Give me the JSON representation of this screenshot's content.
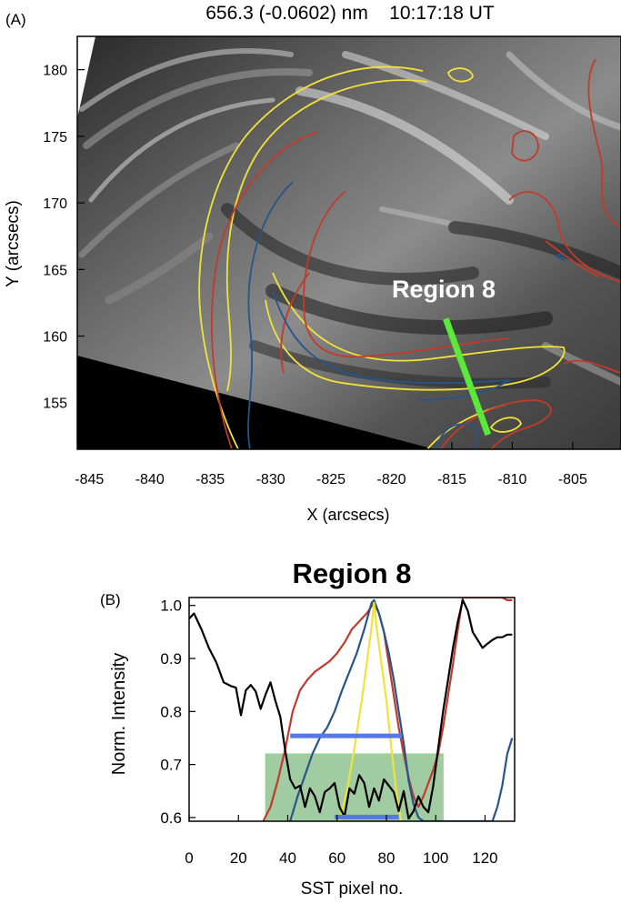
{
  "chart_data": [
    {
      "type": "image",
      "panel_label": "(A)",
      "title": "656.3 (-0.0602) nm    10:17:18 UT",
      "xlabel": "X (arcsecs)",
      "ylabel": "Y (arcsecs)",
      "xlim": [
        -846,
        -801
      ],
      "ylim": [
        151.5,
        182.5
      ],
      "xticks": [
        -845,
        -840,
        -835,
        -830,
        -825,
        -820,
        -815,
        -810,
        -805
      ],
      "yticks": [
        155,
        160,
        165,
        170,
        175,
        180
      ],
      "annotation": "Region 8",
      "region_line": [
        [
          -815.5,
          161.3
        ],
        [
          -812.0,
          152.6
        ]
      ],
      "colors": {
        "yellow": "#f1e23a",
        "red": "#c23a2b",
        "blue": "#27548a",
        "green": "#5ae83a"
      }
    },
    {
      "type": "line",
      "panel_label": "(B)",
      "title": "Region 8",
      "xlabel": "SST pixel no.",
      "ylabel": "Norm. Intensity",
      "xlim": [
        0,
        132
      ],
      "ylim": [
        0.593,
        1.015
      ],
      "xticks": [
        0,
        20,
        40,
        60,
        80,
        100,
        120
      ],
      "yticks": [
        0.6,
        0.7,
        0.8,
        0.9,
        1.0
      ],
      "series": [
        {
          "color": "#000000",
          "x": [
            0,
            2,
            5,
            8,
            11,
            14,
            17,
            19,
            21,
            23,
            25,
            27,
            29,
            31,
            33,
            35,
            37,
            39,
            41,
            43,
            45,
            47,
            49,
            51,
            53,
            55,
            57,
            59,
            61,
            63,
            65,
            67,
            69,
            71,
            73,
            75,
            77,
            79,
            81,
            83,
            85,
            87,
            89,
            91,
            93,
            95,
            97,
            99,
            101,
            103,
            105,
            107,
            109,
            111,
            113,
            115,
            117,
            119,
            121,
            123,
            125,
            127,
            129,
            131
          ],
          "y": [
            0.975,
            0.985,
            0.955,
            0.92,
            0.893,
            0.855,
            0.848,
            0.845,
            0.793,
            0.84,
            0.85,
            0.838,
            0.805,
            0.832,
            0.855,
            0.82,
            0.79,
            0.725,
            0.672,
            0.655,
            0.66,
            0.62,
            0.655,
            0.64,
            0.61,
            0.648,
            0.655,
            0.665,
            0.62,
            0.602,
            0.655,
            0.645,
            0.68,
            0.665,
            0.62,
            0.655,
            0.632,
            0.672,
            0.66,
            0.648,
            0.612,
            0.65,
            0.598,
            0.612,
            0.64,
            0.62,
            0.61,
            0.66,
            0.73,
            0.8,
            0.86,
            0.92,
            0.97,
            1.01,
            0.99,
            0.95,
            0.935,
            0.92,
            0.928,
            0.935,
            0.94,
            0.94,
            0.945,
            0.945
          ]
        },
        {
          "color": "#c23a2b",
          "x": [
            30,
            33,
            36,
            39,
            42,
            45,
            48,
            51,
            54,
            57,
            60,
            63,
            66,
            69,
            72,
            75,
            77,
            79,
            81,
            83,
            85,
            87,
            89,
            91,
            93,
            95,
            97,
            99,
            101,
            103,
            105,
            107,
            109,
            111,
            113,
            115,
            117,
            119,
            121,
            123,
            125,
            127,
            129,
            131
          ],
          "y": [
            0.593,
            0.62,
            0.67,
            0.73,
            0.8,
            0.84,
            0.86,
            0.875,
            0.885,
            0.895,
            0.91,
            0.93,
            0.955,
            0.97,
            0.985,
            1.005,
            0.985,
            0.95,
            0.89,
            0.83,
            0.77,
            0.72,
            0.675,
            0.64,
            0.62,
            0.64,
            0.665,
            0.69,
            0.72,
            0.77,
            0.83,
            0.89,
            0.955,
            1.015,
            1.015,
            1.015,
            1.015,
            1.015,
            1.015,
            1.015,
            1.015,
            1.015,
            1.01,
            1.01
          ]
        },
        {
          "color": "#27548a",
          "x": [
            41,
            44,
            47,
            50,
            53,
            56,
            59,
            62,
            65,
            68,
            71,
            74,
            75,
            77,
            79,
            81,
            83,
            85,
            87,
            89,
            91,
            93,
            95,
            97,
            99,
            101,
            103,
            105,
            107,
            109,
            111,
            113,
            115,
            117,
            119,
            121,
            123,
            125,
            127,
            129,
            131
          ],
          "y": [
            0.593,
            0.64,
            0.68,
            0.72,
            0.75,
            0.77,
            0.8,
            0.84,
            0.875,
            0.91,
            0.955,
            1.005,
            1.01,
            0.985,
            0.95,
            0.91,
            0.86,
            0.8,
            0.74,
            0.67,
            0.625,
            0.6,
            0.593,
            0.593,
            0.593,
            0.593,
            0.593,
            0.593,
            0.593,
            0.593,
            0.593,
            0.593,
            0.593,
            0.593,
            0.593,
            0.593,
            0.593,
            0.62,
            0.66,
            0.72,
            0.75
          ]
        },
        {
          "color": "#f1e23a",
          "x": [
            61,
            64,
            67,
            70,
            72,
            74,
            75,
            76,
            78,
            80,
            82,
            84,
            86
          ],
          "y": [
            0.593,
            0.65,
            0.73,
            0.82,
            0.89,
            0.96,
            1.005,
            0.96,
            0.89,
            0.82,
            0.73,
            0.65,
            0.593
          ]
        }
      ],
      "hlines": [
        {
          "color": "#5577ea",
          "y": 0.754,
          "x": [
            41,
            86
          ]
        },
        {
          "color": "#5577ea",
          "y": 0.601,
          "x": [
            59,
            85
          ]
        }
      ],
      "shaded_region": {
        "color": "#2e8b2e",
        "x": [
          31,
          103
        ],
        "y": [
          0.593,
          0.72
        ]
      }
    }
  ]
}
